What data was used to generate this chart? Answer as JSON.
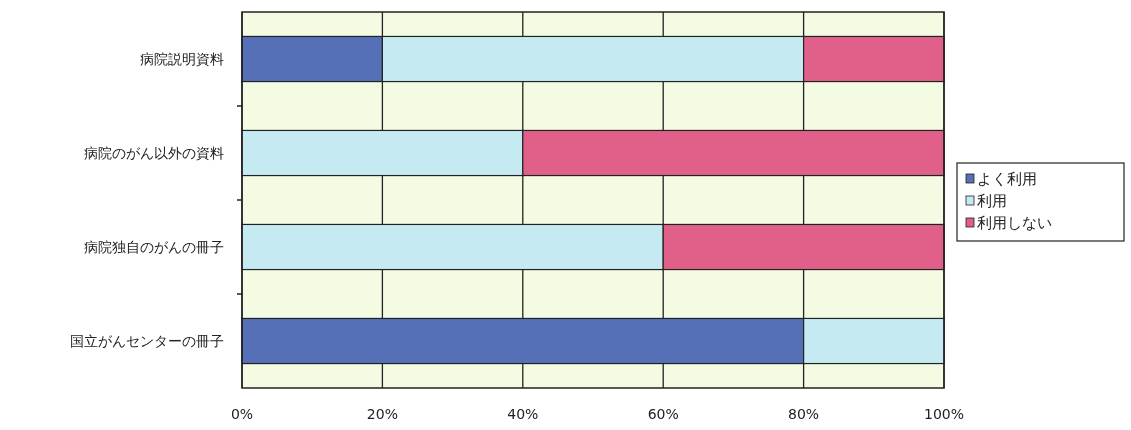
{
  "chart_data": {
    "type": "bar",
    "orientation": "horizontal",
    "stacked": true,
    "categories": [
      "病院説明資料",
      "病院のがん以外の資料",
      "病院独自のがんの冊子",
      "国立がんセンターの冊子"
    ],
    "series": [
      {
        "name": "よく利用",
        "color": "#5670b8",
        "values": [
          20,
          0,
          0,
          80
        ]
      },
      {
        "name": "利用",
        "color": "#c6eaf2",
        "values": [
          60,
          40,
          60,
          20
        ]
      },
      {
        "name": "利用しない",
        "color": "#e0608a",
        "values": [
          20,
          60,
          40,
          0
        ]
      }
    ],
    "xlim": [
      0,
      100
    ],
    "xticks": [
      {
        "value": 0,
        "label": "0%"
      },
      {
        "value": 20,
        "label": "20%"
      },
      {
        "value": 40,
        "label": "40%"
      },
      {
        "value": 60,
        "label": "60%"
      },
      {
        "value": 80,
        "label": "80%"
      },
      {
        "value": 100,
        "label": "100%"
      }
    ],
    "grid": "x",
    "legend": "right"
  }
}
